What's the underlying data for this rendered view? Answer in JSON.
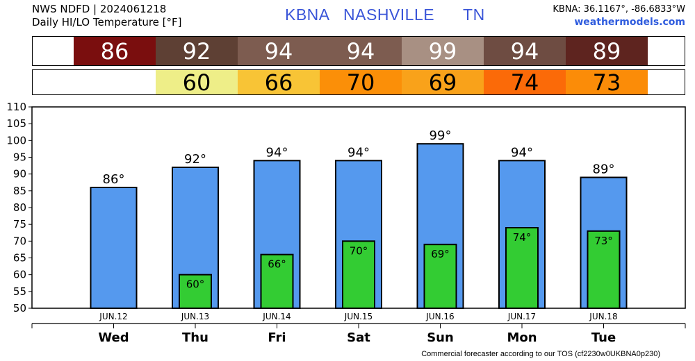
{
  "header": {
    "line1": "NWS NDFD | 2024061218",
    "line2": "Daily HI/LO Temperature [°F]",
    "station": "KBNA   NASHVILLE      TN",
    "coords": "KBNA: 36.1167°, -86.6833°W",
    "site": "weathermodels.com"
  },
  "strips": {
    "hi": [
      {
        "value": "86",
        "color": "#7a0e0e"
      },
      {
        "value": "92",
        "color": "#5e4034"
      },
      {
        "value": "94",
        "color": "#7d5c50"
      },
      {
        "value": "94",
        "color": "#7d5c50"
      },
      {
        "value": "99",
        "color": "#a89083"
      },
      {
        "value": "94",
        "color": "#6e4c42"
      },
      {
        "value": "89",
        "color": "#5e241f"
      }
    ],
    "lo": [
      {
        "value": "",
        "color": "#ffffff"
      },
      {
        "value": "60",
        "color": "#eeee88"
      },
      {
        "value": "66",
        "color": "#f8c436"
      },
      {
        "value": "70",
        "color": "#fb8f08"
      },
      {
        "value": "69",
        "color": "#f9a21a"
      },
      {
        "value": "74",
        "color": "#fb6a08"
      },
      {
        "value": "73",
        "color": "#fb8c08"
      }
    ]
  },
  "chart_data": {
    "type": "bar",
    "categories": [
      "Wed",
      "Thu",
      "Fri",
      "Sat",
      "Sun",
      "Mon",
      "Tue"
    ],
    "dates": [
      "JUN.12",
      "JUN.13",
      "JUN.14",
      "JUN.15",
      "JUN.16",
      "JUN.17",
      "JUN.18"
    ],
    "series": [
      {
        "values": [
          86,
          92,
          94,
          94,
          99,
          94,
          89
        ],
        "color": "#5599ee",
        "labels": [
          "86°",
          "92°",
          "94°",
          "94°",
          "99°",
          "94°",
          "89°"
        ]
      },
      {
        "values": [
          null,
          60,
          66,
          70,
          69,
          74,
          73
        ],
        "color": "#33cc33",
        "labels": [
          "",
          "60°",
          "66°",
          "70°",
          "69°",
          "74°",
          "73°"
        ]
      }
    ],
    "ylim": [
      50,
      110
    ],
    "yticks": [
      50,
      55,
      60,
      65,
      70,
      75,
      80,
      85,
      90,
      95,
      100,
      105,
      110
    ],
    "grid": false,
    "legend": "none"
  },
  "footer": "Commercial forecaster according to our TOS (cf2230w0UKBNA0p230)"
}
